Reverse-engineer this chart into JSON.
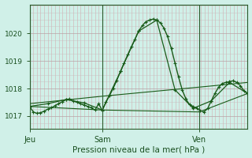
{
  "title": "Pression niveau de la mer( hPa )",
  "bg_color": "#d0f0e8",
  "grid_minor_x_color": "#d4a0a8",
  "grid_major_x_color": "#c09098",
  "grid_minor_y_color": "#c8b8bc",
  "grid_major_y_color": "#b8a0a4",
  "line_color": "#1a5c1a",
  "text_color": "#1a5020",
  "spine_color": "#2a5a2a",
  "ylim": [
    1016.55,
    1021.05
  ],
  "yticks": [
    1017,
    1018,
    1019,
    1020
  ],
  "xtick_labels": [
    "Jeu",
    "Sam",
    "Ven"
  ],
  "xtick_positions": [
    0.0,
    0.333,
    0.778
  ],
  "vline_positions": [
    0.0,
    0.333,
    0.778
  ],
  "series1_x": [
    0.0,
    0.017,
    0.033,
    0.05,
    0.067,
    0.083,
    0.1,
    0.117,
    0.133,
    0.15,
    0.167,
    0.183,
    0.2,
    0.217,
    0.233,
    0.25,
    0.267,
    0.283,
    0.3,
    0.317,
    0.333,
    0.35,
    0.367,
    0.383,
    0.4,
    0.417,
    0.433,
    0.45,
    0.467,
    0.483,
    0.5,
    0.517,
    0.533,
    0.55,
    0.567,
    0.583,
    0.6,
    0.617,
    0.633,
    0.65,
    0.667,
    0.683,
    0.7,
    0.717,
    0.733,
    0.75,
    0.767,
    0.783,
    0.8,
    0.817,
    0.833,
    0.85,
    0.867,
    0.883,
    0.9,
    0.917,
    0.933,
    0.95,
    0.967,
    0.983,
    1.0
  ],
  "series1_y": [
    1017.35,
    1017.15,
    1017.1,
    1017.12,
    1017.18,
    1017.25,
    1017.3,
    1017.38,
    1017.45,
    1017.52,
    1017.6,
    1017.62,
    1017.55,
    1017.5,
    1017.45,
    1017.4,
    1017.35,
    1017.3,
    1017.22,
    1017.45,
    1017.2,
    1017.5,
    1017.75,
    1018.0,
    1018.3,
    1018.62,
    1018.92,
    1019.22,
    1019.52,
    1019.78,
    1020.08,
    1020.28,
    1020.42,
    1020.48,
    1020.52,
    1020.48,
    1020.38,
    1020.18,
    1019.88,
    1019.45,
    1018.92,
    1018.42,
    1017.95,
    1017.62,
    1017.42,
    1017.35,
    1017.28,
    1017.2,
    1017.15,
    1017.28,
    1017.55,
    1017.82,
    1018.05,
    1018.18,
    1018.22,
    1018.25,
    1018.28,
    1018.22,
    1018.1,
    1017.92,
    1017.82
  ],
  "series2_x": [
    0.0,
    0.083,
    0.167,
    0.25,
    0.333,
    0.417,
    0.5,
    0.583,
    0.667,
    0.75,
    0.833,
    0.917,
    1.0
  ],
  "series2_y": [
    1017.35,
    1017.45,
    1017.6,
    1017.48,
    1017.22,
    1018.62,
    1020.08,
    1020.48,
    1017.95,
    1017.28,
    1017.55,
    1018.22,
    1017.82
  ],
  "series3_x": [
    0.0,
    0.333,
    0.778,
    1.0
  ],
  "series3_y": [
    1017.35,
    1017.22,
    1017.15,
    1017.82
  ],
  "series4_x": [
    0.0,
    0.333,
    0.778,
    1.0
  ],
  "series4_y": [
    1017.45,
    1017.72,
    1018.05,
    1018.22
  ],
  "xlim": [
    0.0,
    1.0
  ]
}
